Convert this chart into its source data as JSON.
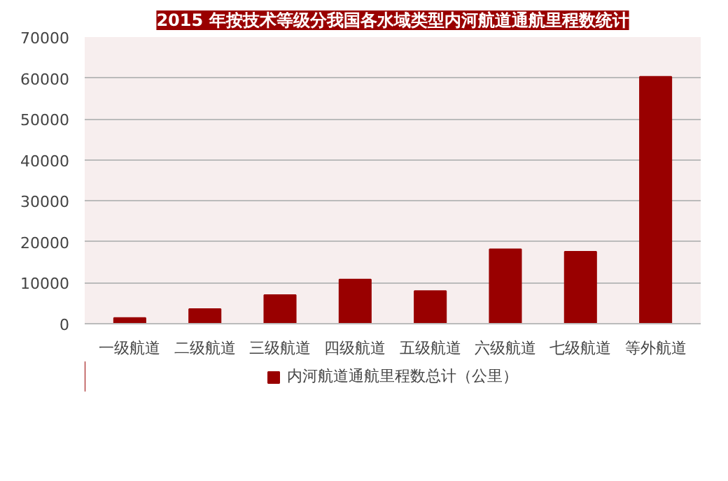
{
  "chart_data": {
    "type": "bar",
    "title": "2015 年按技术等级分我国各水域类型内河航道通航里程数统计",
    "categories": [
      "一级航道",
      "二级航道",
      "三级航道",
      "四级航道",
      "五级航道",
      "六级航道",
      "七级航道",
      "等外航道"
    ],
    "series": [
      {
        "name": "内河航道通航里程数总计（公里）",
        "color": "#990000",
        "values": [
          1400,
          3600,
          7000,
          10800,
          8000,
          18200,
          17600,
          60300
        ]
      }
    ],
    "ylim": [
      0,
      70000
    ],
    "yticks": [
      0,
      10000,
      20000,
      30000,
      40000,
      50000,
      60000,
      70000
    ],
    "grid": "y",
    "legend": "bottom"
  }
}
